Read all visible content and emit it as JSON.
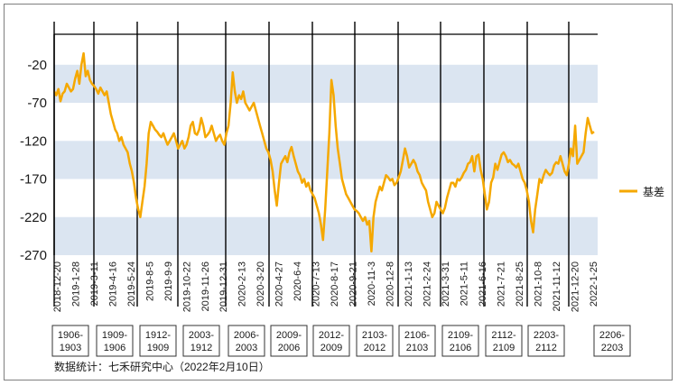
{
  "chart_data": {
    "type": "line",
    "title": "",
    "xlabel": "",
    "ylabel": "",
    "ylim": [
      -270,
      20
    ],
    "yticks": [
      -20,
      -70,
      -120,
      -170,
      -220,
      -270
    ],
    "grid_bands": true,
    "legend_position": "right",
    "series": [
      {
        "name": "基差",
        "color": "#f5a800",
        "values": [
          -55,
          -60,
          -52,
          -68,
          -58,
          -55,
          -45,
          -50,
          -55,
          -52,
          -38,
          -28,
          -45,
          -20,
          -5,
          -35,
          -28,
          -40,
          -45,
          -48,
          -52,
          -58,
          -50,
          -55,
          -60,
          -55,
          -70,
          -85,
          -95,
          -105,
          -110,
          -120,
          -115,
          -125,
          -130,
          -135,
          -150,
          -160,
          -175,
          -195,
          -210,
          -220,
          -200,
          -180,
          -150,
          -110,
          -95,
          -100,
          -105,
          -108,
          -112,
          -115,
          -110,
          -118,
          -125,
          -120,
          -115,
          -110,
          -120,
          -130,
          -125,
          -120,
          -130,
          -125,
          -115,
          -100,
          -95,
          -110,
          -112,
          -105,
          -90,
          -100,
          -115,
          -112,
          -108,
          -100,
          -110,
          -120,
          -115,
          -112,
          -120,
          -125,
          -110,
          -100,
          -70,
          -30,
          -55,
          -70,
          -60,
          -65,
          -55,
          -70,
          -75,
          -80,
          -75,
          -70,
          -80,
          -90,
          -100,
          -110,
          -120,
          -130,
          -135,
          -145,
          -160,
          -185,
          -205,
          -175,
          -150,
          -145,
          -140,
          -148,
          -135,
          -128,
          -140,
          -150,
          -160,
          -165,
          -175,
          -170,
          -180,
          -175,
          -185,
          -190,
          -195,
          -205,
          -215,
          -230,
          -250,
          -210,
          -160,
          -110,
          -40,
          -60,
          -100,
          -130,
          -150,
          -170,
          -180,
          -190,
          -195,
          -200,
          -205,
          -210,
          -212,
          -215,
          -220,
          -225,
          -220,
          -230,
          -225,
          -265,
          -220,
          -200,
          -190,
          -180,
          -185,
          -175,
          -165,
          -168,
          -172,
          -170,
          -178,
          -175,
          -168,
          -160,
          -145,
          -130,
          -140,
          -155,
          -150,
          -145,
          -150,
          -160,
          -165,
          -175,
          -180,
          -185,
          -200,
          -210,
          -220,
          -215,
          -200,
          -205,
          -210,
          -215,
          -208,
          -195,
          -185,
          -175,
          -175,
          -180,
          -170,
          -172,
          -168,
          -162,
          -158,
          -150,
          -148,
          -140,
          -160,
          -140,
          -138,
          -158,
          -170,
          -190,
          -210,
          -200,
          -175,
          -168,
          -150,
          -158,
          -148,
          -138,
          -135,
          -140,
          -148,
          -145,
          -150,
          -152,
          -155,
          -150,
          -160,
          -170,
          -175,
          -185,
          -200,
          -225,
          -240,
          -210,
          -190,
          -170,
          -175,
          -165,
          -158,
          -162,
          -165,
          -162,
          -152,
          -148,
          -150,
          -140,
          -150,
          -160,
          -165,
          -150,
          -130,
          -140,
          -100,
          -150,
          -145,
          -140,
          -135,
          -110,
          -90,
          -100,
          -110,
          -108
        ]
      }
    ],
    "x_tick_labels": [
      "2018-12-20",
      "2019-1-28",
      "2019-3-11",
      "2019-4-16",
      "2019-5-24",
      "2019-8-5",
      "2019-9-9",
      "2019-10-22",
      "2019-11-26",
      "2019-12-31",
      "2020-2-13",
      "2020-3-20",
      "2020-4-27",
      "2020-6-4",
      "2020-7-13",
      "2020-8-17",
      "2020-9-21",
      "2020-11-3",
      "2020-12-8",
      "2021-1-13",
      "2021-2-24",
      "2021-3-31",
      "2021-5-11",
      "2021-6-16",
      "2021-7-21",
      "2021-8-25",
      "2021-10-8",
      "2021-11-12",
      "2021-12-20",
      "2022-1-25"
    ],
    "contract_labels": [
      "1906-1903",
      "1909-1906",
      "1912-1909",
      "2003-1912",
      "2006-2003",
      "2009-2006",
      "2012-2009",
      "2103-2012",
      "2106-2103",
      "2109-2106",
      "2112-2109",
      "2203-2112",
      "2206-2203"
    ],
    "source": "数据统计：七禾研究中心（2022年2月10日）"
  }
}
